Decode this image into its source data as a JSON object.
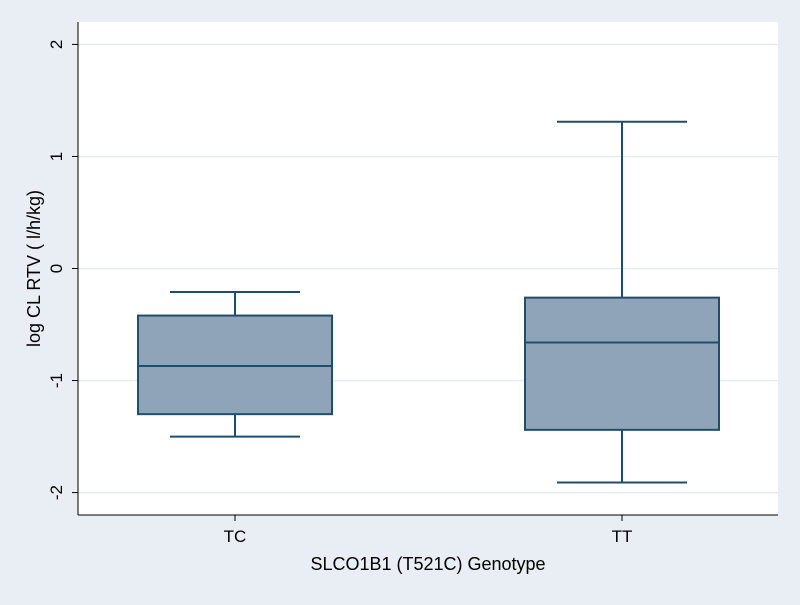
{
  "chart_data": {
    "type": "box",
    "title": "",
    "xlabel": "SLCO1B1 (T521C) Genotype",
    "ylabel": "log CL RTV ( l/h/kg)",
    "ylim": [
      -2.2,
      2.2
    ],
    "yticks": [
      -2,
      -1,
      0,
      1,
      2
    ],
    "grid": true,
    "categories": [
      "TC",
      "TT"
    ],
    "boxes": [
      {
        "category": "TC",
        "whisker_low": -1.5,
        "q1": -1.3,
        "median": -0.87,
        "q3": -0.42,
        "whisker_high": -0.21
      },
      {
        "category": "TT",
        "whisker_low": -1.91,
        "q1": -1.44,
        "median": -0.66,
        "q3": -0.26,
        "whisker_high": 1.31
      }
    ],
    "colors": {
      "background": "#e8eef3",
      "plot_background": "#ffffff",
      "box_fill": "#8fa4b8",
      "box_stroke": "#1f4e6a",
      "grid": "#e6ebef",
      "axis": "#000000"
    }
  }
}
